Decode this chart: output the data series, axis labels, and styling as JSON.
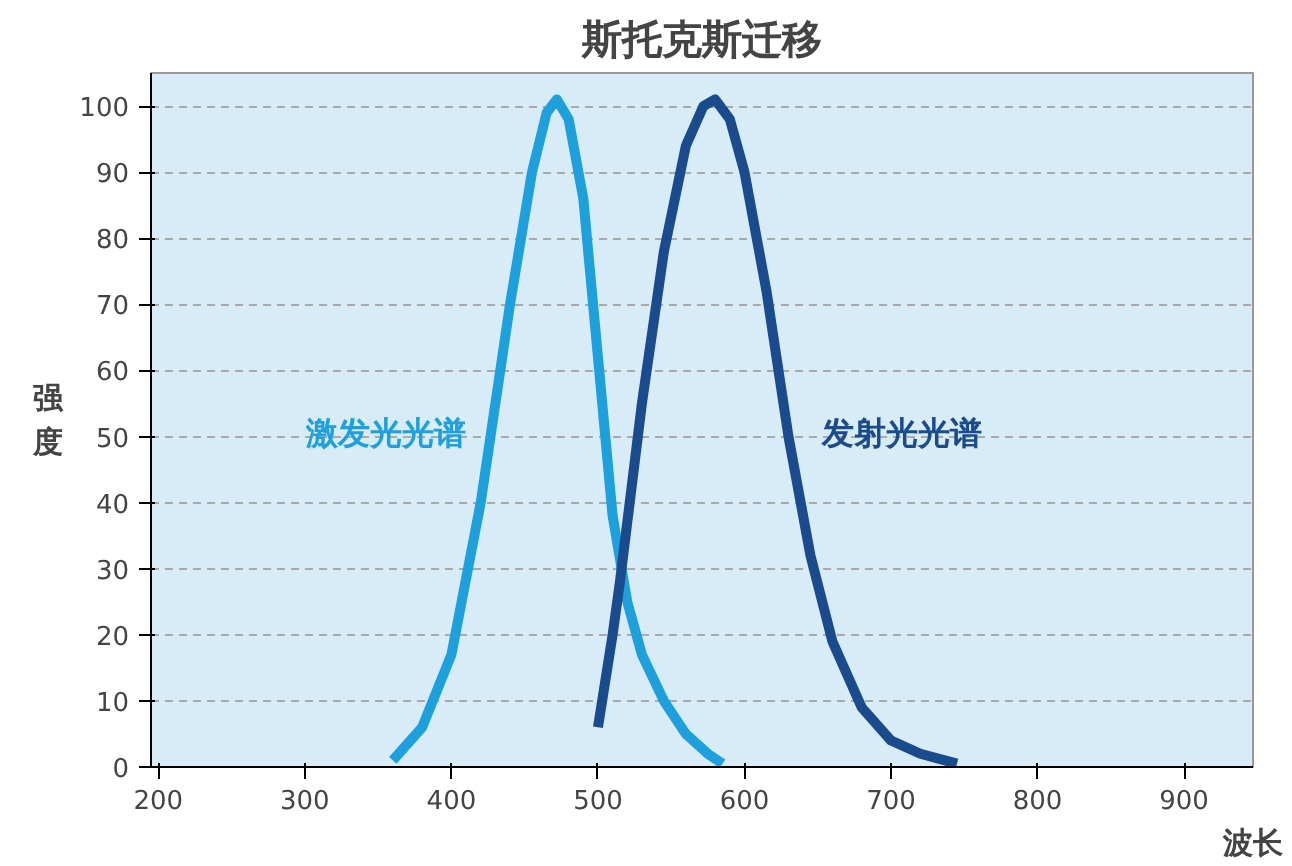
{
  "chart_data": {
    "type": "line",
    "title": "斯托克斯迁移",
    "xlabel": "波长",
    "ylabel": "强度",
    "xlim": [
      195,
      947
    ],
    "ylim": [
      0,
      105
    ],
    "xticks": [
      200,
      300,
      400,
      500,
      600,
      700,
      800,
      900
    ],
    "yticks": [
      0,
      10,
      20,
      30,
      40,
      50,
      60,
      70,
      80,
      90,
      100
    ],
    "grid": "y",
    "legend": false,
    "marker": "none",
    "line_style": "solid",
    "series": [
      {
        "name": "激发光光谱",
        "color": "#1ea0dc",
        "x": [
          360,
          380,
          400,
          420,
          440,
          455,
          465,
          472,
          480,
          490,
          500,
          510,
          520,
          530,
          545,
          560,
          575,
          585
        ],
        "values": [
          1,
          6,
          17,
          40,
          70,
          90,
          99,
          101,
          98,
          86,
          62,
          38,
          25,
          17,
          10,
          5,
          2,
          0.5
        ]
      },
      {
        "name": "发射光光谱",
        "color": "#1a4b8c",
        "x": [
          500,
          510,
          515,
          520,
          530,
          545,
          560,
          572,
          580,
          590,
          600,
          615,
          630,
          645,
          660,
          680,
          700,
          720,
          745
        ],
        "values": [
          6,
          20,
          28,
          37,
          55,
          78,
          94,
          100,
          101,
          98,
          90,
          72,
          50,
          32,
          19,
          9,
          4,
          2,
          0.5
        ]
      }
    ]
  }
}
